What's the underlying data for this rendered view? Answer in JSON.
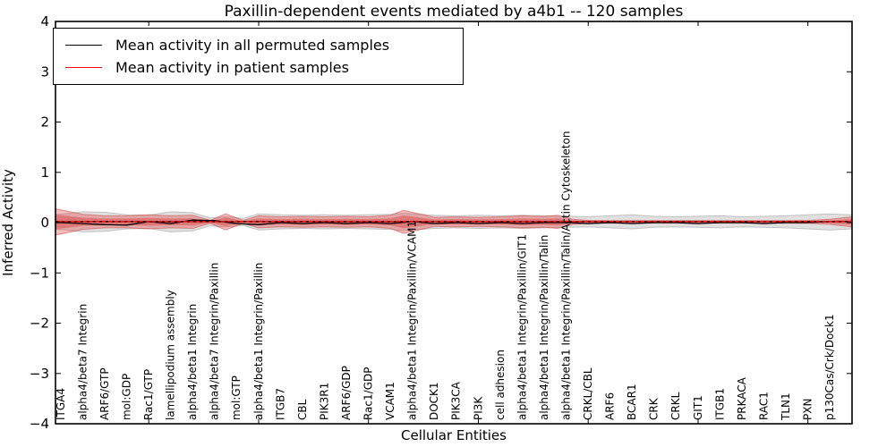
{
  "chart_data": {
    "type": "area",
    "title": "Paxillin-dependent events mediated by a4b1 -- 120 samples",
    "xlabel": "Cellular Entities",
    "ylabel": "Inferred Activity",
    "ylim": [
      -4,
      4
    ],
    "yticks": [
      -4,
      -3,
      -2,
      -1,
      0,
      1,
      2,
      3,
      4
    ],
    "x_major_ticks": [
      5,
      10,
      15,
      20,
      25,
      30,
      35
    ],
    "grid": false,
    "legend_position": "upper left",
    "categories": [
      "ITGA4",
      "alpha4/beta7 Integrin",
      "ARF6/GTP",
      "mol:GDP",
      "Rac1/GTP",
      "lamellipodium assembly",
      "alpha4/beta1 Integrin",
      "alpha4/beta7 Integrin/Paxillin",
      "mol:GTP",
      "alpha4/beta1 Integrin/Paxillin",
      "ITGB7",
      "CBL",
      "PIK3R1",
      "ARF6/GDP",
      "Rac1/GDP",
      "VCAM1",
      "alpha4/beta1 Integrin/Paxillin/VCAM1",
      "DOCK1",
      "PIK3CA",
      "PI3K",
      "cell adhesion",
      "alpha4/beta1 Integrin/Paxillin/GIT1",
      "alpha4/beta1 Integrin/Paxillin/Talin",
      "alpha4/beta1 Integrin/Paxillin/Talin/Actin Cytoskeleton",
      "CRKL/CBL",
      "ARF6",
      "BCAR1",
      "CRK",
      "CRKL",
      "GIT1",
      "ITGB1",
      "PRKACA",
      "RAC1",
      "TLN1",
      "PXN",
      "p130Cas/Crk/Dock1"
    ],
    "series": [
      {
        "name": "Mean activity in all permuted samples",
        "color": "#000000",
        "style": "solid",
        "values": [
          0.0,
          -0.02,
          -0.04,
          -0.05,
          0.02,
          -0.02,
          0.05,
          0.04,
          -0.02,
          -0.04,
          0.0,
          -0.02,
          0.0,
          -0.02,
          0.0,
          -0.02,
          0.02,
          -0.02,
          0.0,
          -0.02,
          0.0,
          -0.02,
          0.0,
          0.0,
          -0.02,
          0.0,
          -0.02,
          0.0,
          0.0,
          -0.02,
          0.0,
          0.0,
          -0.02,
          0.0,
          0.0,
          0.02
        ]
      },
      {
        "name": "Mean activity in patient samples",
        "color": "#ff0000",
        "style": "solid",
        "values": [
          0.02,
          0.02,
          0.02,
          0.02,
          0.02,
          0.02,
          0.02,
          0.02,
          0.02,
          0.02,
          0.02,
          0.02,
          0.02,
          0.02,
          0.02,
          0.02,
          0.02,
          0.02,
          0.02,
          0.02,
          0.02,
          0.02,
          0.02,
          0.02,
          0.02,
          0.02,
          0.02,
          0.02,
          0.02,
          0.02,
          0.02,
          0.02,
          0.02,
          0.02,
          0.02,
          0.02
        ]
      }
    ],
    "bands": [
      {
        "name": "permuted-samples-spread",
        "color": "#b4b4b4",
        "center": 0.015,
        "points": [
          [
            0.75,
            0.15
          ],
          [
            1,
            0.15
          ],
          [
            2,
            0.2
          ],
          [
            3,
            0.19
          ],
          [
            4,
            0.14
          ],
          [
            5,
            0.13
          ],
          [
            6,
            0.2
          ],
          [
            7,
            0.18
          ],
          [
            7.8,
            0.08
          ],
          [
            8.5,
            0.1
          ],
          [
            9.3,
            0.07
          ],
          [
            10,
            0.16
          ],
          [
            11,
            0.14
          ],
          [
            12,
            0.13
          ],
          [
            13,
            0.14
          ],
          [
            14,
            0.13
          ],
          [
            15,
            0.14
          ],
          [
            16,
            0.15
          ],
          [
            16.6,
            0.17
          ],
          [
            17,
            0.16
          ],
          [
            18,
            0.13
          ],
          [
            19,
            0.12
          ],
          [
            20,
            0.13
          ],
          [
            21,
            0.12
          ],
          [
            22,
            0.13
          ],
          [
            23,
            0.12
          ],
          [
            24,
            0.11
          ],
          [
            25,
            0.1
          ],
          [
            26,
            0.12
          ],
          [
            27,
            0.14
          ],
          [
            28,
            0.11
          ],
          [
            29,
            0.1
          ],
          [
            30,
            0.11
          ],
          [
            31,
            0.12
          ],
          [
            32,
            0.1
          ],
          [
            33,
            0.11
          ],
          [
            34,
            0.12
          ],
          [
            35,
            0.14
          ],
          [
            36,
            0.16
          ],
          [
            37,
            0.14
          ]
        ]
      },
      {
        "name": "patient-samples-spread",
        "color": "#e43c3c",
        "center": 0.015,
        "points": [
          [
            0.75,
            0.26
          ],
          [
            1,
            0.24
          ],
          [
            2,
            0.15
          ],
          [
            3,
            0.12
          ],
          [
            4,
            0.12
          ],
          [
            5,
            0.14
          ],
          [
            6,
            0.12
          ],
          [
            7,
            0.13
          ],
          [
            7.8,
            0.03
          ],
          [
            8.5,
            0.16
          ],
          [
            9.3,
            0.03
          ],
          [
            10,
            0.12
          ],
          [
            11,
            0.1
          ],
          [
            12,
            0.11
          ],
          [
            13,
            0.1
          ],
          [
            14,
            0.11
          ],
          [
            15,
            0.1
          ],
          [
            16,
            0.13
          ],
          [
            16.6,
            0.23
          ],
          [
            17,
            0.19
          ],
          [
            18,
            0.09
          ],
          [
            19,
            0.1
          ],
          [
            20,
            0.09
          ],
          [
            21,
            0.1
          ],
          [
            22,
            0.12
          ],
          [
            23,
            0.11
          ],
          [
            23.6,
            0.13
          ],
          [
            24.3,
            0.05
          ],
          [
            25,
            0.03
          ],
          [
            26,
            0.025
          ],
          [
            27,
            0.025
          ],
          [
            28,
            0.025
          ],
          [
            29,
            0.025
          ],
          [
            30,
            0.025
          ],
          [
            31,
            0.025
          ],
          [
            32,
            0.025
          ],
          [
            33,
            0.025
          ],
          [
            34,
            0.025
          ],
          [
            35,
            0.03
          ],
          [
            36,
            0.05
          ],
          [
            37,
            0.1
          ]
        ]
      }
    ]
  }
}
